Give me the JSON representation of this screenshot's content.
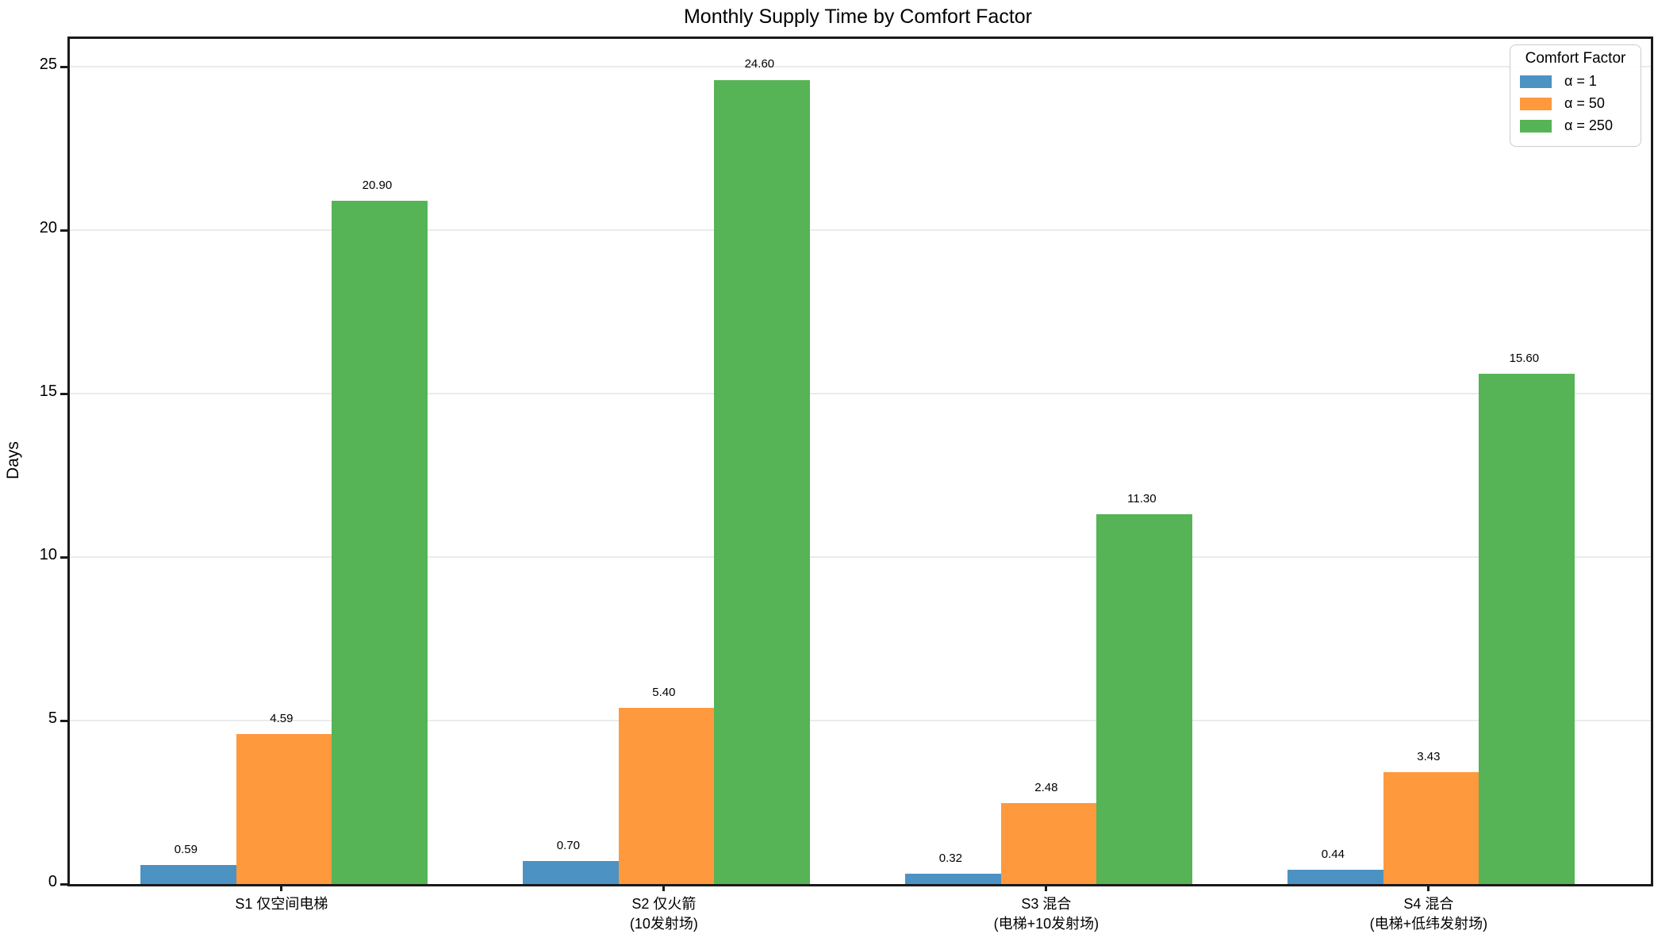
{
  "title": "Monthly Supply Time by Comfort Factor",
  "ylabel": "Days",
  "legend": {
    "title": "Comfort Factor",
    "entries": [
      "α = 1",
      "α = 50",
      "α = 250"
    ]
  },
  "colors": {
    "alpha_1": "#4C92C3",
    "alpha_50": "#FF993E",
    "alpha_250": "#56B356",
    "spine": "#1a1a1a",
    "grid": "rgba(0,0,0,0.08)"
  },
  "chart_data": {
    "type": "bar",
    "title": "Monthly Supply Time by Comfort Factor",
    "xlabel": "",
    "ylabel": "Days",
    "categories": [
      [
        "S1 仅空间电梯"
      ],
      [
        "S2 仅火箭",
        "(10发射场)"
      ],
      [
        "S3 混合",
        "(电梯+10发射场)"
      ],
      [
        "S4 混合",
        "(电梯+低纬发射场)"
      ]
    ],
    "series": [
      {
        "name": "α = 1",
        "color": "#4C92C3",
        "values": [
          0.59,
          0.7,
          0.32,
          0.44
        ],
        "labels": [
          "0.59",
          "0.70",
          "0.32",
          "0.44"
        ]
      },
      {
        "name": "α = 50",
        "color": "#FF993E",
        "values": [
          4.59,
          5.4,
          2.48,
          3.43
        ],
        "labels": [
          "4.59",
          "5.40",
          "2.48",
          "3.43"
        ]
      },
      {
        "name": "α = 250",
        "color": "#56B356",
        "values": [
          20.9,
          24.6,
          11.3,
          15.6
        ],
        "labels": [
          "20.90",
          "24.60",
          "11.30",
          "15.60"
        ]
      }
    ],
    "ylim": [
      0,
      25.85
    ],
    "yticks": [
      0,
      5,
      10,
      15,
      20,
      25
    ],
    "grid": true,
    "legend_title": "Comfort Factor",
    "legend_position": "upper right"
  }
}
